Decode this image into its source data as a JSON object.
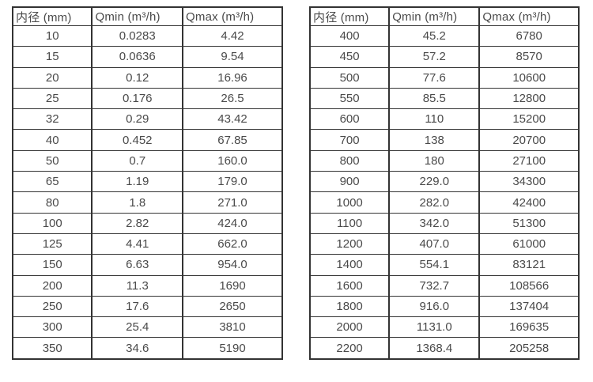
{
  "colors": {
    "background": "#ffffff",
    "border": "#333333",
    "text": "#4a4a4a"
  },
  "chart_data": [
    {
      "type": "table",
      "name": "small-diameter-flow-ranges",
      "columns": [
        "内径 (mm)",
        "Qmin (m³/h)",
        "Qmax (m³/h)"
      ],
      "rows": [
        [
          "10",
          "0.0283",
          "4.42"
        ],
        [
          "15",
          "0.0636",
          "9.54"
        ],
        [
          "20",
          "0.12",
          "16.96"
        ],
        [
          "25",
          "0.176",
          "26.5"
        ],
        [
          "32",
          "0.29",
          "43.42"
        ],
        [
          "40",
          "0.452",
          "67.85"
        ],
        [
          "50",
          "0.7",
          "160.0"
        ],
        [
          "65",
          "1.19",
          "179.0"
        ],
        [
          "80",
          "1.8",
          "271.0"
        ],
        [
          "100",
          "2.82",
          "424.0"
        ],
        [
          "125",
          "4.41",
          "662.0"
        ],
        [
          "150",
          "6.63",
          "954.0"
        ],
        [
          "200",
          "11.3",
          "1690"
        ],
        [
          "250",
          "17.6",
          "2650"
        ],
        [
          "300",
          "25.4",
          "3810"
        ],
        [
          "350",
          "34.6",
          "5190"
        ]
      ]
    },
    {
      "type": "table",
      "name": "large-diameter-flow-ranges",
      "columns": [
        "内径 (mm)",
        "Qmin (m³/h)",
        "Qmax (m³/h)"
      ],
      "rows": [
        [
          "400",
          "45.2",
          "6780"
        ],
        [
          "450",
          "57.2",
          "8570"
        ],
        [
          "500",
          "77.6",
          "10600"
        ],
        [
          "550",
          "85.5",
          "12800"
        ],
        [
          "600",
          "110",
          "15200"
        ],
        [
          "700",
          "138",
          "20700"
        ],
        [
          "800",
          "180",
          "27100"
        ],
        [
          "900",
          "229.0",
          "34300"
        ],
        [
          "1000",
          "282.0",
          "42400"
        ],
        [
          "1100",
          "342.0",
          "51300"
        ],
        [
          "1200",
          "407.0",
          "61000"
        ],
        [
          "1400",
          "554.1",
          "83121"
        ],
        [
          "1600",
          "732.7",
          "108566"
        ],
        [
          "1800",
          "916.0",
          "137404"
        ],
        [
          "2000",
          "1131.0",
          "169635"
        ],
        [
          "2200",
          "1368.4",
          "205258"
        ]
      ]
    }
  ]
}
